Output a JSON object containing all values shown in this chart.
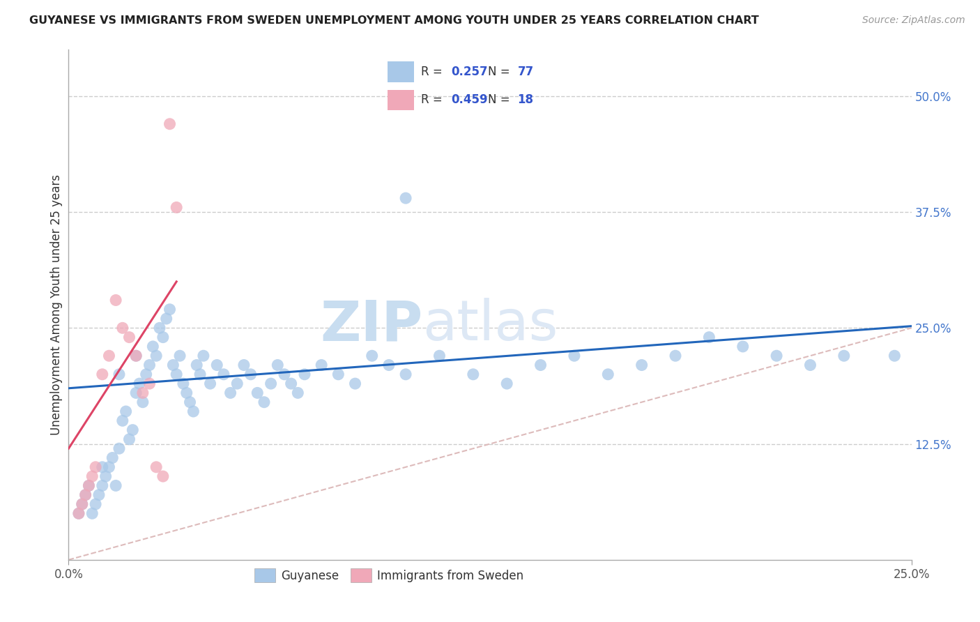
{
  "title": "GUYANESE VS IMMIGRANTS FROM SWEDEN UNEMPLOYMENT AMONG YOUTH UNDER 25 YEARS CORRELATION CHART",
  "source": "Source: ZipAtlas.com",
  "ylabel": "Unemployment Among Youth under 25 years",
  "xlim": [
    0.0,
    0.25
  ],
  "ylim": [
    0.0,
    0.55
  ],
  "yticks": [
    0.0,
    0.125,
    0.25,
    0.375,
    0.5
  ],
  "ytick_labels": [
    "",
    "12.5%",
    "25.0%",
    "37.5%",
    "50.0%"
  ],
  "xtick_labels_bottom": [
    "0.0%",
    "25.0%"
  ],
  "blue_color": "#a8c8e8",
  "pink_color": "#f0a8b8",
  "blue_line_color": "#2266bb",
  "pink_line_color": "#dd4466",
  "diag_line_color": "#ddbbbb",
  "legend_R_color": "#3355cc",
  "R_blue": 0.257,
  "N_blue": 77,
  "R_pink": 0.459,
  "N_pink": 18,
  "watermark_zip": "ZIP",
  "watermark_atlas": "atlas",
  "legend_label_blue": "Guyanese",
  "legend_label_pink": "Immigrants from Sweden",
  "blue_x": [
    0.003,
    0.004,
    0.005,
    0.006,
    0.007,
    0.008,
    0.009,
    0.01,
    0.01,
    0.011,
    0.012,
    0.013,
    0.014,
    0.015,
    0.015,
    0.016,
    0.017,
    0.018,
    0.019,
    0.02,
    0.02,
    0.021,
    0.022,
    0.023,
    0.024,
    0.025,
    0.026,
    0.027,
    0.028,
    0.029,
    0.03,
    0.031,
    0.032,
    0.033,
    0.034,
    0.035,
    0.036,
    0.037,
    0.038,
    0.039,
    0.04,
    0.042,
    0.044,
    0.046,
    0.048,
    0.05,
    0.052,
    0.054,
    0.056,
    0.058,
    0.06,
    0.062,
    0.064,
    0.066,
    0.068,
    0.07,
    0.075,
    0.08,
    0.085,
    0.09,
    0.095,
    0.1,
    0.11,
    0.12,
    0.13,
    0.14,
    0.15,
    0.16,
    0.17,
    0.18,
    0.19,
    0.2,
    0.21,
    0.22,
    0.23,
    0.245,
    0.1
  ],
  "blue_y": [
    0.05,
    0.06,
    0.07,
    0.08,
    0.05,
    0.06,
    0.07,
    0.08,
    0.1,
    0.09,
    0.1,
    0.11,
    0.08,
    0.12,
    0.2,
    0.15,
    0.16,
    0.13,
    0.14,
    0.18,
    0.22,
    0.19,
    0.17,
    0.2,
    0.21,
    0.23,
    0.22,
    0.25,
    0.24,
    0.26,
    0.27,
    0.21,
    0.2,
    0.22,
    0.19,
    0.18,
    0.17,
    0.16,
    0.21,
    0.2,
    0.22,
    0.19,
    0.21,
    0.2,
    0.18,
    0.19,
    0.21,
    0.2,
    0.18,
    0.17,
    0.19,
    0.21,
    0.2,
    0.19,
    0.18,
    0.2,
    0.21,
    0.2,
    0.19,
    0.22,
    0.21,
    0.2,
    0.22,
    0.2,
    0.19,
    0.21,
    0.22,
    0.2,
    0.21,
    0.22,
    0.24,
    0.23,
    0.22,
    0.21,
    0.22,
    0.22,
    0.39
  ],
  "pink_x": [
    0.003,
    0.004,
    0.005,
    0.006,
    0.007,
    0.008,
    0.01,
    0.012,
    0.014,
    0.016,
    0.018,
    0.02,
    0.022,
    0.024,
    0.026,
    0.028,
    0.03,
    0.032
  ],
  "pink_y": [
    0.05,
    0.06,
    0.07,
    0.08,
    0.09,
    0.1,
    0.2,
    0.22,
    0.28,
    0.25,
    0.24,
    0.22,
    0.18,
    0.19,
    0.1,
    0.09,
    0.47,
    0.38
  ],
  "blue_trendline_x": [
    0.0,
    0.25
  ],
  "blue_trendline_y": [
    0.185,
    0.252
  ],
  "pink_trendline_x": [
    0.0,
    0.032
  ],
  "pink_trendline_y": [
    0.12,
    0.3
  ]
}
